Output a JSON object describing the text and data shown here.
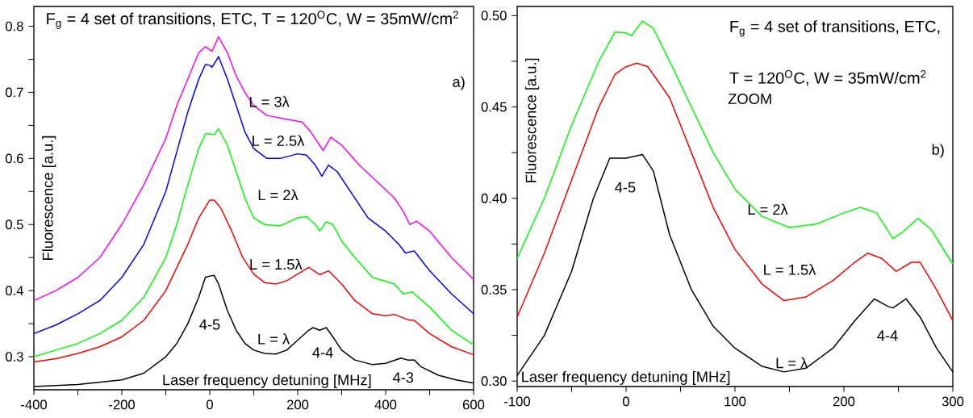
{
  "chart_data": [
    {
      "type": "line",
      "title": "F$_{g}$ = 4 set of transitions, ETC, T = 120$^{O}$C, W = 35mW/cm$^{2}$",
      "xlabel": "Laser frequency detuning [MHz]",
      "ylabel": "Fluorescence [a.u.]",
      "xlim": [
        -400,
        600
      ],
      "ylim": [
        0.25,
        0.83
      ],
      "xticks": [
        -400,
        {
          "value": -300,
          "label": null
        },
        -200,
        {
          "value": -100,
          "label": null
        },
        0,
        {
          "value": 100,
          "label": null
        },
        200,
        {
          "value": 300,
          "label": null
        },
        400,
        {
          "value": 500,
          "label": null
        },
        600
      ],
      "yticks": [
        0.3,
        {
          "value": 0.35,
          "label": null
        },
        0.4,
        {
          "value": 0.45,
          "label": null
        },
        0.5,
        {
          "value": 0.55,
          "label": null
        },
        0.6,
        {
          "value": 0.65,
          "label": null
        },
        0.7,
        {
          "value": 0.75,
          "label": null
        },
        0.8
      ],
      "annotations": [
        "a)",
        "4-5",
        "4-4",
        "4-3"
      ],
      "series": [
        {
          "name": "L = λ",
          "color": "#000000",
          "x": [
            -400,
            -300,
            -200,
            -150,
            -100,
            -75,
            -50,
            -25,
            -10,
            0,
            10,
            20,
            40,
            60,
            80,
            100,
            125,
            150,
            175,
            200,
            225,
            235,
            250,
            265,
            280,
            300,
            330,
            370,
            400,
            435,
            450,
            465,
            480,
            520,
            560,
            600
          ],
          "values": [
            0.255,
            0.258,
            0.265,
            0.275,
            0.3,
            0.32,
            0.35,
            0.39,
            0.42,
            0.422,
            0.423,
            0.41,
            0.37,
            0.34,
            0.32,
            0.31,
            0.305,
            0.304,
            0.31,
            0.325,
            0.34,
            0.344,
            0.34,
            0.344,
            0.33,
            0.31,
            0.295,
            0.288,
            0.29,
            0.298,
            0.295,
            0.295,
            0.285,
            0.272,
            0.265,
            0.26
          ]
        },
        {
          "name": "L = 1.5λ",
          "color": "#ff0000",
          "x": [
            -400,
            -350,
            -300,
            -250,
            -200,
            -150,
            -100,
            -50,
            -25,
            0,
            10,
            25,
            50,
            75,
            100,
            125,
            150,
            175,
            200,
            225,
            250,
            270,
            300,
            330,
            370,
            400,
            420,
            450,
            465,
            500,
            550,
            600
          ],
          "values": [
            0.292,
            0.297,
            0.305,
            0.315,
            0.33,
            0.355,
            0.4,
            0.47,
            0.51,
            0.537,
            0.537,
            0.525,
            0.49,
            0.45,
            0.425,
            0.412,
            0.41,
            0.415,
            0.425,
            0.435,
            0.424,
            0.43,
            0.41,
            0.385,
            0.365,
            0.362,
            0.364,
            0.356,
            0.355,
            0.335,
            0.315,
            0.303
          ]
        },
        {
          "name": "L = 2λ",
          "color": "#00ff00",
          "x": [
            -400,
            -350,
            -300,
            -250,
            -200,
            -150,
            -100,
            -75,
            -50,
            -25,
            -10,
            0,
            10,
            20,
            40,
            60,
            80,
            100,
            125,
            160,
            200,
            220,
            240,
            250,
            265,
            280,
            300,
            330,
            370,
            420,
            440,
            460,
            500,
            550,
            600
          ],
          "values": [
            0.3,
            0.31,
            0.32,
            0.335,
            0.355,
            0.39,
            0.45,
            0.5,
            0.56,
            0.615,
            0.637,
            0.637,
            0.636,
            0.645,
            0.62,
            0.58,
            0.54,
            0.51,
            0.5,
            0.498,
            0.51,
            0.512,
            0.5,
            0.49,
            0.504,
            0.5,
            0.475,
            0.45,
            0.42,
            0.41,
            0.395,
            0.398,
            0.375,
            0.34,
            0.318
          ]
        },
        {
          "name": "L = 2.5λ",
          "color": "#0000ff",
          "x": [
            -400,
            -350,
            -300,
            -250,
            -200,
            -150,
            -100,
            -75,
            -50,
            -25,
            -10,
            0,
            5,
            20,
            40,
            60,
            80,
            100,
            130,
            160,
            200,
            220,
            240,
            255,
            270,
            290,
            320,
            360,
            400,
            430,
            445,
            465,
            500,
            550,
            600
          ],
          "values": [
            0.335,
            0.348,
            0.365,
            0.385,
            0.42,
            0.47,
            0.55,
            0.61,
            0.67,
            0.72,
            0.742,
            0.741,
            0.738,
            0.754,
            0.72,
            0.68,
            0.64,
            0.615,
            0.6,
            0.6,
            0.607,
            0.605,
            0.59,
            0.573,
            0.59,
            0.58,
            0.55,
            0.51,
            0.49,
            0.47,
            0.457,
            0.46,
            0.43,
            0.395,
            0.365
          ]
        },
        {
          "name": "L = 3λ",
          "color": "#ff00ff",
          "x": [
            -400,
            -350,
            -300,
            -250,
            -200,
            -150,
            -100,
            -75,
            -50,
            -25,
            -10,
            5,
            20,
            40,
            60,
            80,
            100,
            130,
            170,
            210,
            230,
            250,
            258,
            275,
            300,
            340,
            380,
            420,
            440,
            455,
            470,
            500,
            550,
            600
          ],
          "values": [
            0.385,
            0.4,
            0.42,
            0.45,
            0.5,
            0.56,
            0.63,
            0.68,
            0.72,
            0.76,
            0.769,
            0.762,
            0.784,
            0.76,
            0.725,
            0.7,
            0.68,
            0.665,
            0.66,
            0.655,
            0.64,
            0.62,
            0.612,
            0.632,
            0.62,
            0.59,
            0.565,
            0.54,
            0.52,
            0.5,
            0.505,
            0.49,
            0.45,
            0.417
          ]
        }
      ]
    },
    {
      "type": "line",
      "title": "F$_{g}$ = 4 set of transitions, ETC,",
      "subtitle": "T = 120$^{O}$C, W = 35mW/cm$^{2}$",
      "xlabel": "Laser frequency detuning [MHz]",
      "ylabel": "Fluorescence [a.u.]",
      "xlim": [
        -100,
        300
      ],
      "ylim": [
        0.297,
        0.505
      ],
      "xticks": [
        -100,
        {
          "value": -50,
          "label": null
        },
        0,
        {
          "value": 50,
          "label": null
        },
        100,
        {
          "value": 150,
          "label": null
        },
        200,
        {
          "value": 250,
          "label": null
        },
        300
      ],
      "yticks": [
        {
          "value": 0.3,
          "label": "0.30"
        },
        {
          "value": 0.325,
          "label": null
        },
        {
          "value": 0.35,
          "label": "0.35"
        },
        {
          "value": 0.375,
          "label": null
        },
        {
          "value": 0.4,
          "label": "0.40"
        },
        {
          "value": 0.425,
          "label": null
        },
        {
          "value": 0.45,
          "label": "0.45"
        },
        {
          "value": 0.475,
          "label": null
        },
        {
          "value": 0.5,
          "label": "0.50"
        }
      ],
      "annotations": [
        "ZOOM",
        "b)",
        "4-5",
        "4-4"
      ],
      "series": [
        {
          "name": "L = λ",
          "color": "#000000",
          "x": [
            -100,
            -75,
            -50,
            -30,
            -15,
            0,
            15,
            25,
            40,
            60,
            80,
            100,
            125,
            145,
            165,
            190,
            210,
            228,
            240,
            245,
            257,
            270,
            285,
            300
          ],
          "values": [
            0.303,
            0.325,
            0.36,
            0.4,
            0.422,
            0.422,
            0.424,
            0.415,
            0.38,
            0.35,
            0.33,
            0.318,
            0.308,
            0.305,
            0.307,
            0.318,
            0.333,
            0.345,
            0.341,
            0.34,
            0.345,
            0.335,
            0.318,
            0.305
          ]
        },
        {
          "name": "L = 1.5λ",
          "color": "#ff0000",
          "x": [
            -100,
            -75,
            -50,
            -25,
            -10,
            0,
            10,
            20,
            40,
            60,
            80,
            100,
            125,
            145,
            165,
            190,
            210,
            222,
            235,
            248,
            262,
            270,
            285,
            300
          ],
          "values": [
            0.335,
            0.37,
            0.41,
            0.45,
            0.468,
            0.472,
            0.474,
            0.472,
            0.455,
            0.425,
            0.395,
            0.372,
            0.353,
            0.344,
            0.346,
            0.355,
            0.365,
            0.37,
            0.367,
            0.36,
            0.365,
            0.365,
            0.35,
            0.333
          ]
        },
        {
          "name": "L = 2λ",
          "color": "#00ff00",
          "x": [
            -100,
            -75,
            -50,
            -25,
            -10,
            0,
            5,
            15,
            25,
            40,
            60,
            80,
            100,
            125,
            150,
            175,
            200,
            215,
            230,
            245,
            255,
            268,
            280,
            300
          ],
          "values": [
            0.367,
            0.4,
            0.44,
            0.475,
            0.491,
            0.4905,
            0.489,
            0.497,
            0.493,
            0.475,
            0.45,
            0.425,
            0.405,
            0.39,
            0.384,
            0.386,
            0.392,
            0.395,
            0.392,
            0.378,
            0.382,
            0.389,
            0.383,
            0.364
          ]
        }
      ]
    }
  ]
}
